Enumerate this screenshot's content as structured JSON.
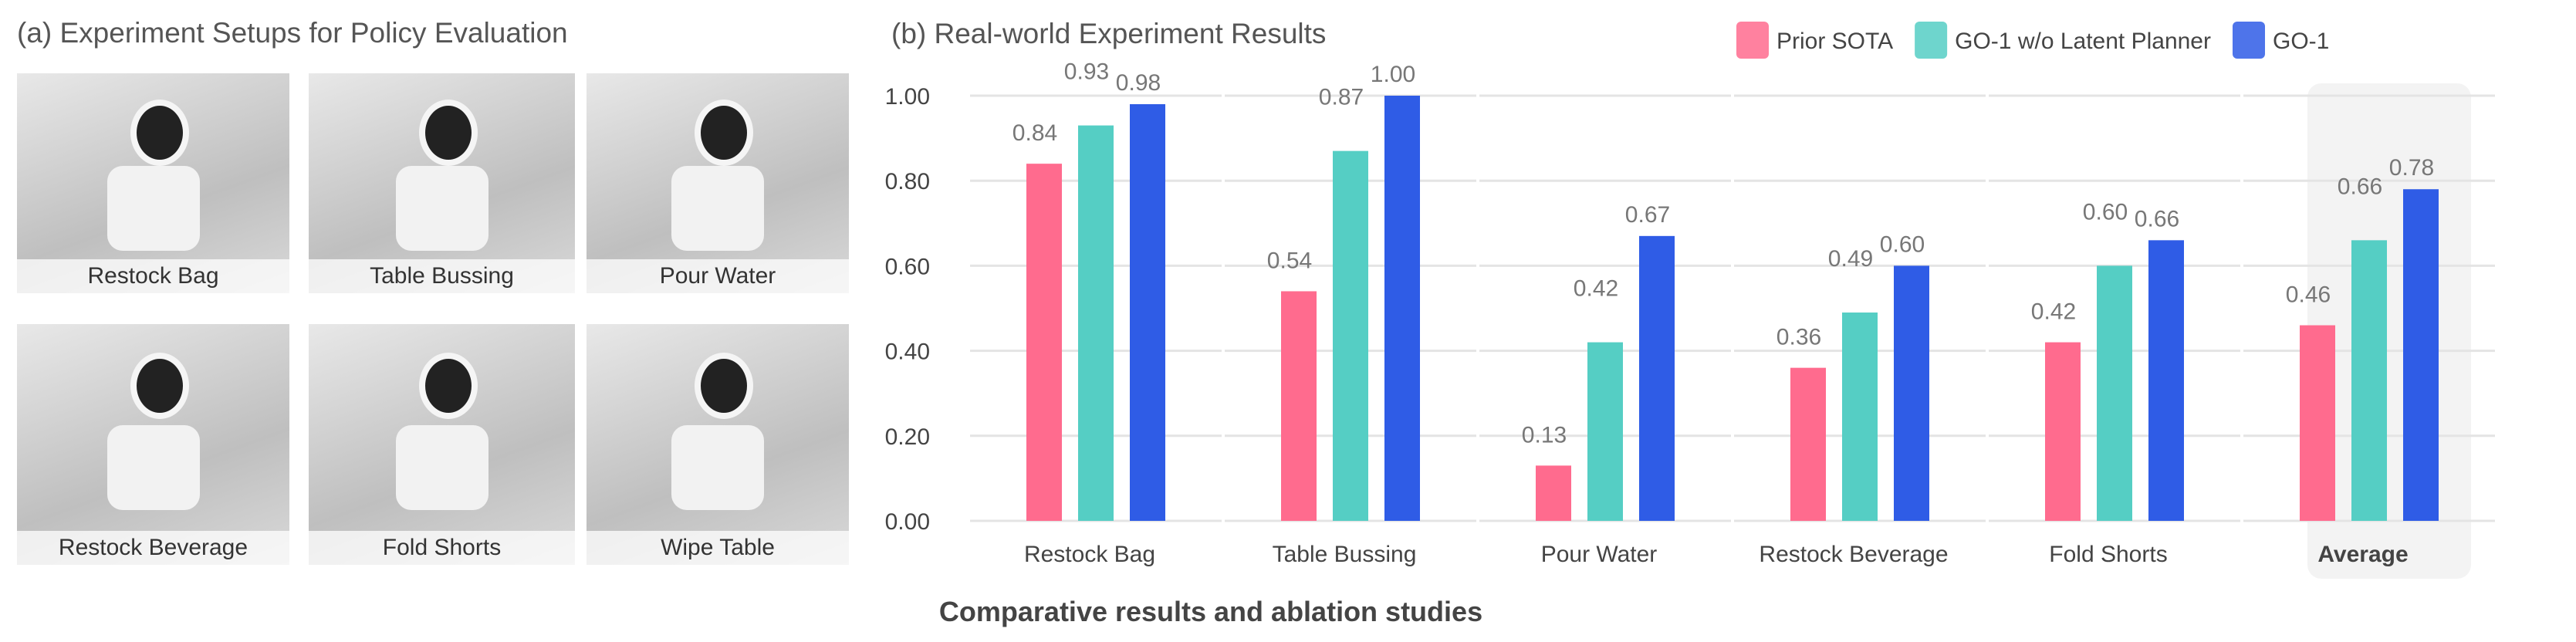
{
  "left_panel": {
    "title": "(a) Experiment Setups for Policy Evaluation",
    "images": [
      {
        "label": "Restock Bag"
      },
      {
        "label": "Table Bussing"
      },
      {
        "label": "Pour Water"
      },
      {
        "label": "Restock Beverage"
      },
      {
        "label": "Fold Shorts"
      },
      {
        "label": "Wipe Table"
      }
    ]
  },
  "caption": "Comparative results and ablation studies",
  "chart_data": {
    "type": "bar",
    "title": "(b) Real-world Experiment Results",
    "categories": [
      "Restock Bag",
      "Table Bussing",
      "Pour Water",
      "Restock Beverage",
      "Fold Shorts",
      "Average"
    ],
    "highlighted_category": "Average",
    "series": [
      {
        "name": "Prior SOTA",
        "color": "#ff6b8e",
        "values": [
          0.84,
          0.54,
          0.13,
          0.36,
          0.42,
          0.46
        ]
      },
      {
        "name": "GO-1 w/o Latent Planner",
        "color": "#55cec4",
        "values": [
          0.93,
          0.87,
          0.42,
          0.49,
          0.6,
          0.66
        ]
      },
      {
        "name": "GO-1",
        "color": "#2f5ce6",
        "values": [
          0.98,
          1.0,
          0.67,
          0.6,
          0.66,
          0.78
        ]
      }
    ],
    "data_labels": [
      [
        "0.84",
        "0.54",
        "0.13",
        "0.36",
        "0.42",
        "0.46"
      ],
      [
        "0.93",
        "0.87",
        "0.42",
        "0.49",
        "0.60",
        "0.66"
      ],
      [
        "0.98",
        "1.00",
        "0.67",
        "0.60",
        "0.66",
        "0.78"
      ]
    ],
    "yticks": [
      "0.00",
      "0.20",
      "0.40",
      "0.60",
      "0.80",
      "1.00"
    ],
    "ylim": [
      0,
      1.0
    ],
    "grid": true,
    "legend_position": "top-right"
  }
}
